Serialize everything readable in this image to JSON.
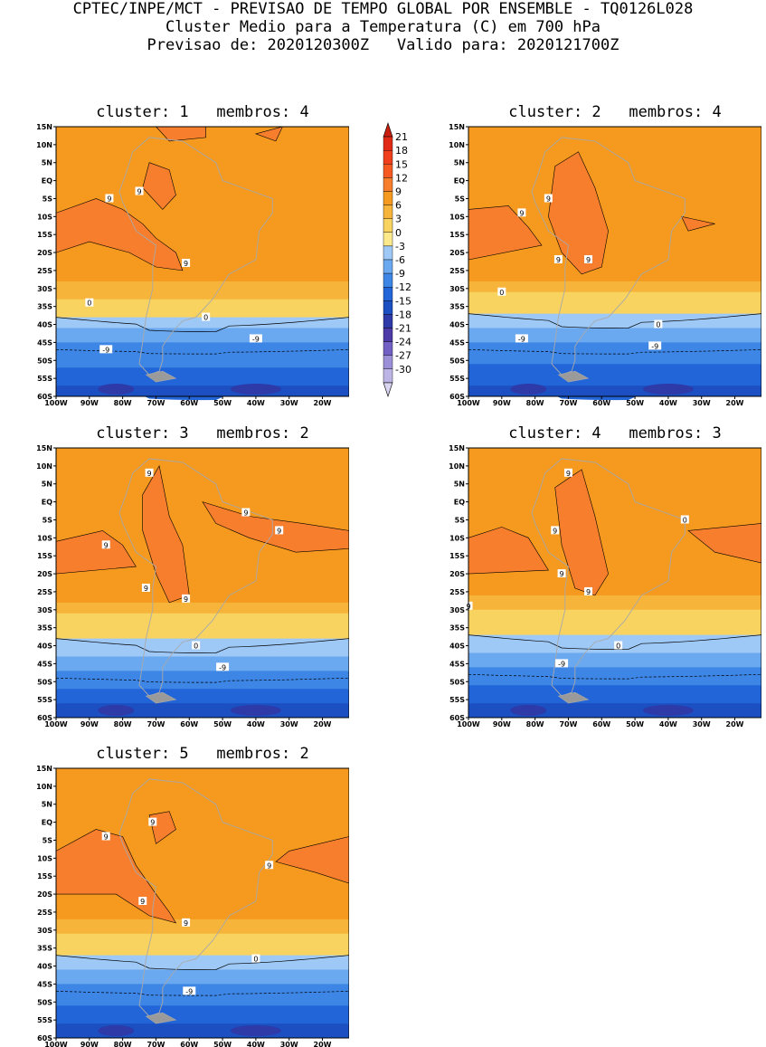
{
  "header": {
    "line1": "CPTEC/INPE/MCT - PREVISAO DE TEMPO GLOBAL POR ENSEMBLE - TQ0126L028",
    "line2": "Cluster Medio para a Temperatura (C) em 700 hPa",
    "line3": "Previsao de: 2020120300Z   Valido para: 2020121700Z"
  },
  "lat_labels": [
    "15N",
    "10N",
    "5N",
    "EQ",
    "5S",
    "10S",
    "15S",
    "20S",
    "25S",
    "30S",
    "35S",
    "40S",
    "45S",
    "50S",
    "55S",
    "60S"
  ],
  "lon_labels": [
    "100W",
    "90W",
    "80W",
    "70W",
    "60W",
    "50W",
    "40W",
    "30W",
    "20W"
  ],
  "panels": [
    {
      "title": "cluster: 1   membros: 4",
      "contour_labels": [
        "9",
        "9",
        "9",
        "0",
        "0",
        "-9",
        "-9"
      ]
    },
    {
      "title": "cluster: 2   membros: 4",
      "contour_labels": [
        "9",
        "9",
        "9",
        "9",
        "0",
        "0",
        "-9",
        "-9"
      ]
    },
    {
      "title": "cluster: 3   membros: 2",
      "contour_labels": [
        "9",
        "9",
        "9",
        "9",
        "9",
        "9",
        "0",
        "-9"
      ]
    },
    {
      "title": "cluster: 4   membros: 3",
      "contour_labels": [
        "9",
        "9",
        "9",
        "9",
        "9",
        "0",
        "0",
        "-9"
      ]
    },
    {
      "title": "cluster: 5   membros: 2",
      "contour_labels": [
        "9",
        "9",
        "9",
        "9",
        "9",
        "0",
        "-9"
      ]
    }
  ],
  "colorbar": {
    "levels": [
      "21",
      "18",
      "15",
      "12",
      "9",
      "6",
      "3",
      "0",
      "-3",
      "-6",
      "-9",
      "-12",
      "-15",
      "-18",
      "-21",
      "-24",
      "-27",
      "-30"
    ],
    "colors": [
      "#c81e10",
      "#e02a16",
      "#ef3f1c",
      "#f65a22",
      "#f77e2c",
      "#f59a1e",
      "#f7b43a",
      "#f8d360",
      "#fbe98c",
      "#9ec9f7",
      "#6aa8ef",
      "#3d86e6",
      "#2265d8",
      "#1b4fc2",
      "#2d3aa8",
      "#4b3aa8",
      "#7360c4",
      "#9b8fd8",
      "#bdb4e6",
      "#d9d4f0"
    ]
  }
}
